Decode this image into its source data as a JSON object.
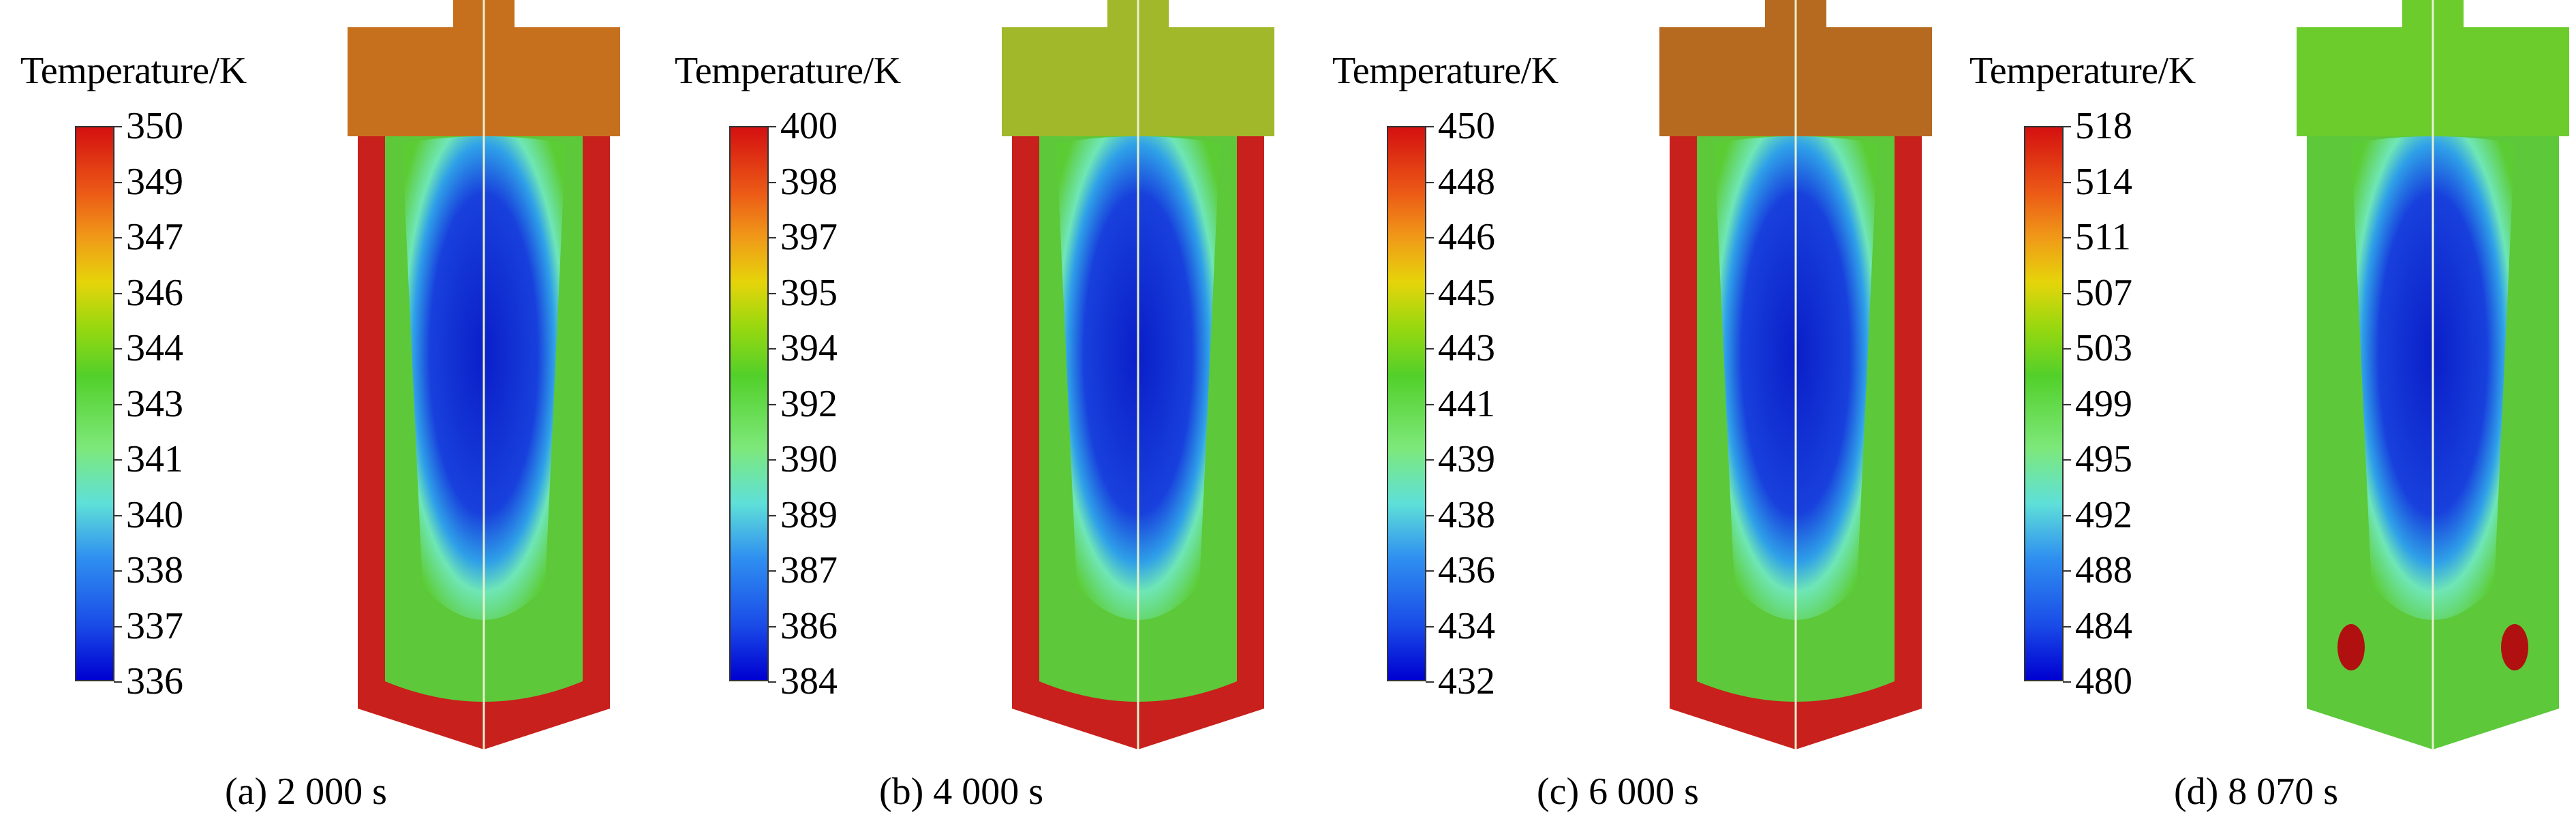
{
  "panels": [
    {
      "legend_title": "Temperature/K",
      "ticks": [
        "350",
        "349",
        "347",
        "346",
        "344",
        "343",
        "341",
        "340",
        "338",
        "337",
        "336"
      ],
      "caption": "(a) 2 000 s",
      "outer_color": "#c8201c",
      "top_color": "#c6701e",
      "hot_spot": false
    },
    {
      "legend_title": "Temperature/K",
      "ticks": [
        "400",
        "398",
        "397",
        "395",
        "394",
        "392",
        "390",
        "389",
        "387",
        "386",
        "384"
      ],
      "caption": "(b) 4 000 s",
      "outer_color": "#c8201c",
      "top_color": "#a0b82a",
      "hot_spot": false
    },
    {
      "legend_title": "Temperature/K",
      "ticks": [
        "450",
        "448",
        "446",
        "445",
        "443",
        "441",
        "439",
        "438",
        "436",
        "434",
        "432"
      ],
      "caption": "(c) 6 000 s",
      "outer_color": "#c8201c",
      "top_color": "#b66a20",
      "hot_spot": false
    },
    {
      "legend_title": "Temperature/K",
      "ticks": [
        "518",
        "514",
        "511",
        "507",
        "503",
        "499",
        "495",
        "492",
        "488",
        "484",
        "480"
      ],
      "caption": "(d) 8 070 s",
      "outer_color": "#5cc83a",
      "top_color": "#6ccc2c",
      "hot_spot": true
    }
  ]
}
